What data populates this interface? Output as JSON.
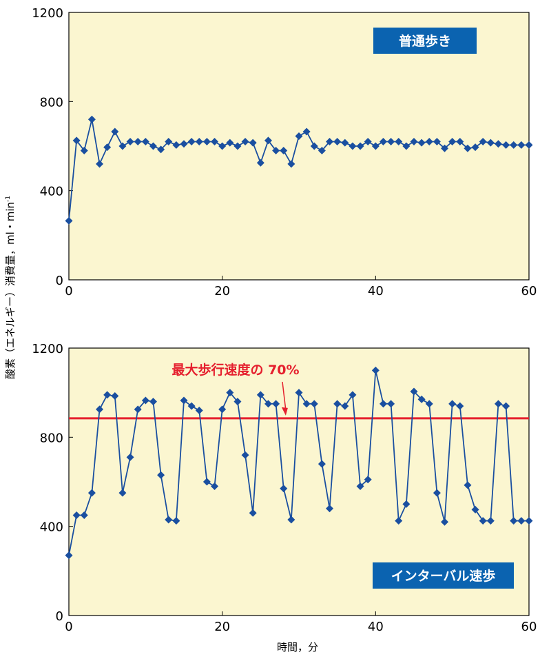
{
  "chart_data": [
    {
      "type": "line",
      "legend_label": "普通歩き",
      "legend_placement": "top-right",
      "xlim": [
        0,
        60
      ],
      "ylim": [
        0,
        1200
      ],
      "x_ticks": [
        "0",
        "20",
        "40",
        "60"
      ],
      "y_ticks": [
        "0",
        "400",
        "800",
        "1200"
      ],
      "grid": false,
      "series": [
        {
          "x": [
            0,
            1,
            2,
            3,
            4,
            5,
            6,
            7,
            8,
            9,
            10,
            11,
            12,
            13,
            14,
            15,
            16,
            17,
            18,
            19,
            20,
            21,
            22,
            23,
            24,
            25,
            26,
            27,
            28,
            29,
            30,
            31,
            32,
            33,
            34,
            35,
            36,
            37,
            38,
            39,
            40,
            41,
            42,
            43,
            44,
            45,
            46,
            47,
            48,
            49,
            50,
            51,
            52,
            53,
            54,
            55,
            56,
            57,
            58,
            59,
            60
          ],
          "y": [
            265,
            625,
            580,
            720,
            520,
            595,
            665,
            600,
            620,
            620,
            620,
            600,
            585,
            620,
            605,
            610,
            620,
            620,
            620,
            620,
            600,
            615,
            600,
            620,
            615,
            525,
            625,
            580,
            580,
            520,
            645,
            665,
            600,
            580,
            620,
            620,
            615,
            600,
            600,
            620,
            600,
            620,
            620,
            620,
            600,
            620,
            615,
            620,
            620,
            590,
            620,
            620,
            590,
            595,
            620,
            615,
            610,
            605,
            605,
            605,
            605
          ]
        }
      ]
    },
    {
      "type": "line",
      "legend_label": "インターバル速歩",
      "legend_placement": "bottom-right",
      "xlim": [
        0,
        60
      ],
      "ylim": [
        0,
        1200
      ],
      "x_ticks": [
        "0",
        "20",
        "40",
        "60"
      ],
      "y_ticks": [
        "0",
        "400",
        "800",
        "1200"
      ],
      "grid": false,
      "reference_line": {
        "y": 885,
        "label": "最大歩行速度の 70%",
        "color": "#e5202e",
        "arrow_to_x": 29
      },
      "series": [
        {
          "x": [
            0,
            1,
            2,
            3,
            4,
            5,
            6,
            7,
            8,
            9,
            10,
            11,
            12,
            13,
            14,
            15,
            16,
            17,
            18,
            19,
            20,
            21,
            22,
            23,
            24,
            25,
            26,
            27,
            28,
            29,
            30,
            31,
            32,
            33,
            34,
            35,
            36,
            37,
            38,
            39,
            40,
            41,
            42,
            43,
            44,
            45,
            46,
            47,
            48,
            49,
            50,
            51,
            52,
            53,
            54,
            55,
            56,
            57,
            58,
            59,
            60
          ],
          "y": [
            270,
            450,
            450,
            550,
            925,
            990,
            985,
            550,
            710,
            925,
            965,
            960,
            630,
            430,
            425,
            965,
            940,
            920,
            600,
            580,
            925,
            1000,
            960,
            720,
            460,
            990,
            950,
            950,
            570,
            430,
            1000,
            950,
            950,
            680,
            480,
            950,
            940,
            990,
            580,
            610,
            1100,
            950,
            950,
            425,
            500,
            1005,
            970,
            950,
            550,
            420,
            950,
            940,
            585,
            475,
            425,
            425,
            950,
            940,
            425,
            425,
            425
          ]
        }
      ]
    }
  ],
  "y_axis_label": "酸素（エネルギー）消費量，ml・min",
  "y_axis_label_superscript": "-1",
  "x_axis_label": "時間，分",
  "colors": {
    "plot_bg": "#fbf6d0",
    "series": "#1a4fa0",
    "legend_bg": "#0b63b0",
    "legend_text": "#ffffff",
    "reference": "#e5202e",
    "axis": "#000000"
  }
}
